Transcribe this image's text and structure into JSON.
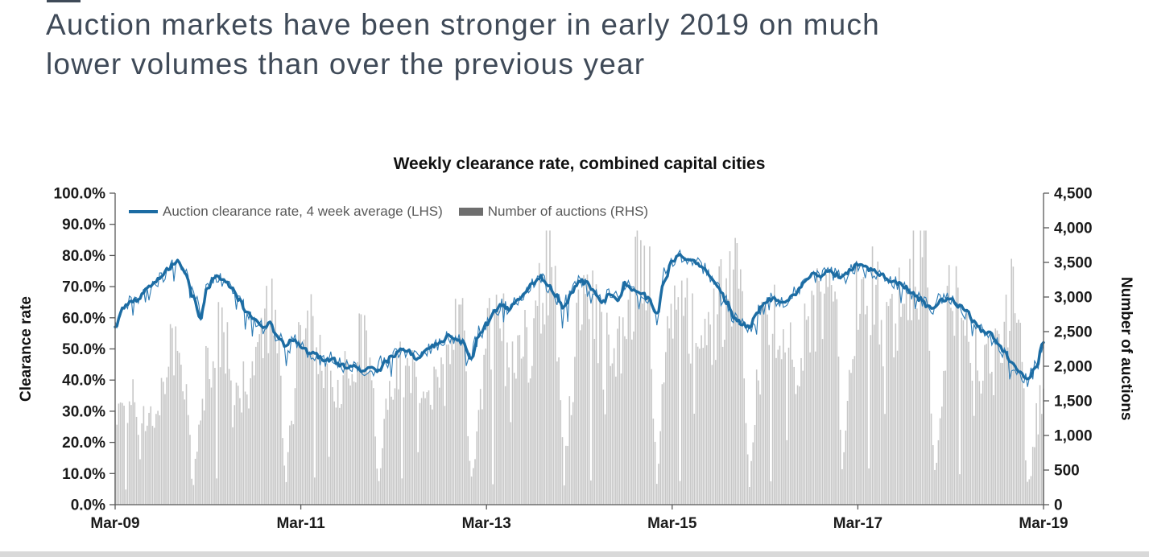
{
  "page": {
    "title_line1": "Auction markets have been stronger in early 2019 on much",
    "title_line2": "lower volumes than over the previous year",
    "title_color": "#3F4A58",
    "footer_strip_color": "#D9D9D9"
  },
  "chart_data": {
    "type": "combo",
    "title": "Weekly clearance rate, combined capital cities",
    "x_tick_labels": [
      "Mar-09",
      "Mar-11",
      "Mar-13",
      "Mar-15",
      "Mar-17",
      "Mar-19"
    ],
    "x_range_weeks": 522,
    "grid": "off",
    "left_axis": {
      "label": "Clearance rate",
      "min": 0,
      "max": 100,
      "step": 10,
      "tick_labels": [
        "0.0%",
        "10.0%",
        "20.0%",
        "30.0%",
        "40.0%",
        "50.0%",
        "60.0%",
        "70.0%",
        "80.0%",
        "90.0%",
        "100.0%"
      ]
    },
    "right_axis": {
      "label": "Number of auctions",
      "min": 0,
      "max": 4500,
      "step": 500,
      "tick_labels": [
        "0",
        "500",
        "1,000",
        "1,500",
        "2,000",
        "2,500",
        "3,000",
        "3,500",
        "4,000",
        "4,500"
      ]
    },
    "legend": [
      {
        "label": "Auction clearance rate, 4 week average (LHS)",
        "type": "line",
        "color": "#1C6CA3"
      },
      {
        "label": "Number of auctions (RHS)",
        "type": "bar",
        "color": "#6E6E6E"
      }
    ],
    "axis_color": "#595959",
    "series": [
      {
        "name": "Auction clearance rate, 4 week average (LHS)",
        "type": "line",
        "axis": "left",
        "unit": "percent",
        "color": "#1C6CA3",
        "thin_line_color": "#2C7AB3",
        "start_month": "Mar-09",
        "interval": "monthly",
        "monthly_values": [
          57,
          63,
          65,
          66,
          69,
          71,
          73,
          76,
          78,
          75,
          67,
          60,
          70,
          73,
          72,
          70,
          66,
          62,
          59,
          57,
          58,
          54,
          51,
          53,
          51,
          49,
          48,
          46,
          47,
          45,
          44,
          45,
          43,
          44,
          43,
          46,
          48,
          50,
          49,
          47,
          49,
          51,
          52,
          54,
          53,
          52,
          47,
          54,
          58,
          62,
          64,
          63,
          66,
          68,
          71,
          73,
          70,
          67,
          63,
          68,
          72,
          71,
          68,
          65,
          68,
          66,
          71,
          69,
          68,
          66,
          61,
          72,
          78,
          80,
          79,
          78,
          76,
          73,
          70,
          65,
          60,
          58,
          57,
          62,
          65,
          66,
          65,
          66,
          68,
          71,
          74,
          73,
          75,
          74,
          73,
          75,
          77,
          76,
          75,
          74,
          72,
          71,
          70,
          68,
          66,
          64,
          63,
          66,
          66,
          64,
          62,
          59,
          56,
          55,
          52,
          49,
          45,
          42,
          40,
          44,
          52
        ]
      },
      {
        "name": "Number of auctions (RHS)",
        "type": "bar",
        "axis": "right",
        "unit": "count",
        "color": "#C7C7C7",
        "start_month": "Mar-09",
        "interval": "monthly",
        "monthly_mean_values": [
          1300,
          1300,
          1450,
          1300,
          1250,
          1400,
          1600,
          2000,
          2250,
          1950,
          250,
          1100,
          2200,
          2300,
          2400,
          1900,
          1700,
          1800,
          1900,
          2300,
          2600,
          2300,
          300,
          1400,
          2300,
          2500,
          2200,
          1800,
          1600,
          1700,
          1800,
          2100,
          2400,
          2100,
          250,
          1200,
          1900,
          2000,
          2000,
          1500,
          1400,
          1500,
          1700,
          2000,
          2300,
          2600,
          250,
          1300,
          2300,
          2400,
          2500,
          2000,
          2000,
          2200,
          2500,
          2900,
          3300,
          2900,
          300,
          1700,
          2700,
          2700,
          2800,
          2200,
          2100,
          2400,
          2700,
          3100,
          3500,
          3300,
          350,
          1900,
          2900,
          2800,
          2900,
          2400,
          2300,
          2500,
          2700,
          3100,
          3300,
          2800,
          300,
          1800,
          2600,
          2500,
          2700,
          2200,
          2000,
          2200,
          2500,
          2800,
          3200,
          3100,
          350,
          1900,
          3000,
          2900,
          3000,
          2500,
          2400,
          2600,
          2800,
          3200,
          3600,
          3100,
          350,
          2000,
          3300,
          2800,
          2700,
          2100,
          1900,
          2000,
          2100,
          2500,
          2800,
          2300,
          200,
          1100,
          1900
        ],
        "holiday_dip_weeks": [
          6,
          57,
          112,
          161,
          212,
          267,
          317,
          368,
          423,
          474
        ],
        "minor_dip_weeks": [
          14,
          66,
          120,
          170,
          222,
          275,
          325,
          377,
          432,
          482
        ],
        "max_weekly_value": 3960
      }
    ]
  }
}
